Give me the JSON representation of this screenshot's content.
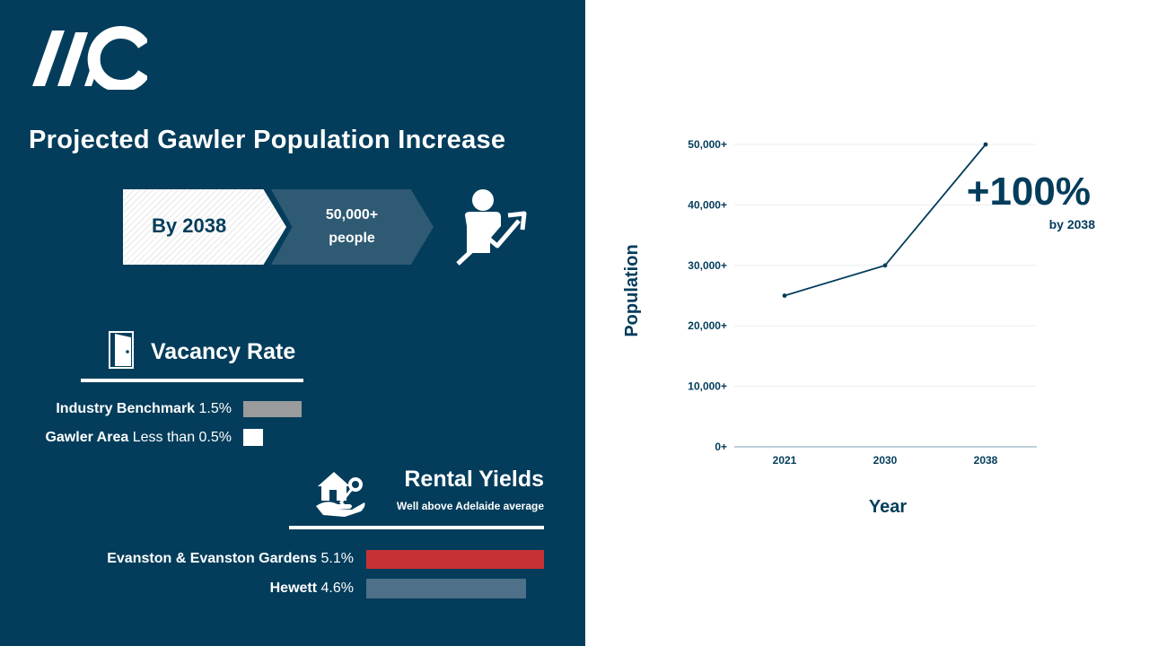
{
  "brand": {
    "logo_text": "AIC",
    "panel_color": "#033d5b"
  },
  "left": {
    "title": "Projected Gawler Population Increase",
    "projection": {
      "year_label": "By 2038",
      "amount": "50,000+",
      "unit": "people"
    },
    "vacancy": {
      "title": "Vacancy Rate",
      "rows": [
        {
          "name": "Industry Benchmark",
          "value_text": "1.5%",
          "value": 1.5,
          "color": "#999b9c"
        },
        {
          "name": "Gawler Area",
          "value_text": "Less than 0.5%",
          "value": 0.5,
          "color": "#ffffff"
        }
      ]
    },
    "rental": {
      "title": "Rental Yields",
      "subtitle": "Well above Adelaide average",
      "rows": [
        {
          "name": "Evanston & Evanston Gardens",
          "value_text": "5.1%",
          "value": 5.1,
          "color": "#c63135"
        },
        {
          "name": "Hewett",
          "value_text": "4.6%",
          "value": 4.6,
          "color": "#4e7088"
        }
      ]
    }
  },
  "chart_data": {
    "type": "line",
    "title": "",
    "xlabel": "Year",
    "ylabel": "Population",
    "x": [
      "2021",
      "2030",
      "2038"
    ],
    "series": [
      {
        "values": [
          25000,
          30000,
          50000
        ]
      }
    ],
    "ylim": [
      0,
      50000
    ],
    "yticks": [
      0,
      10000,
      20000,
      30000,
      40000,
      50000
    ],
    "ytick_labels": [
      "0+",
      "10,000+",
      "20,000+",
      "30,000+",
      "40,000+",
      "50,000+"
    ],
    "grid": true,
    "line_color": "#033d5b",
    "annotation": {
      "value": "+100%",
      "note": "by 2038"
    }
  }
}
